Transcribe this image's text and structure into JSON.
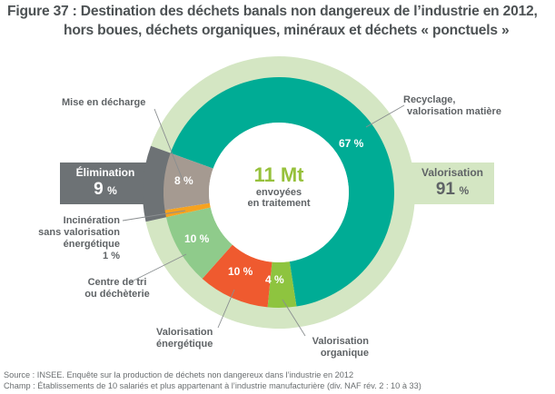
{
  "title": {
    "line1": "Figure 37 : Destination des déchets banals non dangereux de l’industrie en 2012,",
    "line2": "hors boues, déchets organiques, minéraux et déchets « ponctuels »"
  },
  "center": {
    "value": "11 Mt",
    "subtitle_line1": "envoyées",
    "subtitle_line2": "en traitement"
  },
  "groups": {
    "elimination": {
      "label": "Élimination",
      "value": "9",
      "unit": "%",
      "color": "#6d7275"
    },
    "valorisation": {
      "label": "Valorisation",
      "value": "91",
      "unit": "%",
      "color": "#d4e6c3"
    }
  },
  "footer": {
    "source": "Source : INSEE. Enquête sur la production de déchets non dangereux dans l’industrie en 2012",
    "scope": "Champ : Établissements de 10 salariés et plus appartenant à l’industrie manufacturière (div. NAF rév. 2 : 10 à 33)"
  },
  "chart_data": {
    "type": "pie",
    "subtype": "nested-donut",
    "title": "Figure 37 : Destination des déchets banals non dangereux de l’industrie en 2012, hors boues, déchets organiques, minéraux et déchets « ponctuels »",
    "total": "11 Mt",
    "unit": "%",
    "inner_ring": [
      {
        "name": "Recyclage, valorisation matière",
        "value": 67,
        "label": "67 %",
        "color": "#00ac95",
        "group": "Valorisation"
      },
      {
        "name": "Valorisation organique",
        "value": 4,
        "label": "4 %",
        "color": "#8ec43f",
        "group": "Valorisation"
      },
      {
        "name": "Valorisation énergétique",
        "value": 10,
        "label": "10 %",
        "color": "#ef5a2f",
        "group": "Valorisation"
      },
      {
        "name": "Centre de tri ou déchèterie",
        "value": 10,
        "label": "10 %",
        "color": "#8fcb8b",
        "group": "Valorisation"
      },
      {
        "name": "Incinération sans valorisation énergétique",
        "value": 1,
        "label": "1 %",
        "color": "#f6a21f",
        "group": "Élimination"
      },
      {
        "name": "Mise en décharge",
        "value": 8,
        "label": "8 %",
        "color": "#a59a91",
        "group": "Élimination"
      }
    ],
    "outer_ring": [
      {
        "name": "Valorisation",
        "value": 91,
        "label": "91 %",
        "color": "#d4e6c3"
      },
      {
        "name": "Élimination",
        "value": 9,
        "label": "9 %",
        "color": "#6d7275"
      }
    ],
    "start_angle_deg": -70,
    "direction": "clockwise"
  },
  "labels": {
    "recyclage_line1": "Recyclage,",
    "recyclage_line2": "valorisation matière",
    "decharge": "Mise en décharge",
    "incineration_line1": "Incinération",
    "incineration_line2": "sans valorisation",
    "incineration_line3": "énergétique",
    "incineration_pct": "1 %",
    "tri_line1": "Centre de tri",
    "tri_line2": "ou déchèterie",
    "energetique_line1": "Valorisation",
    "energetique_line2": "énergétique",
    "organique_line1": "Valorisation",
    "organique_line2": "organique"
  }
}
